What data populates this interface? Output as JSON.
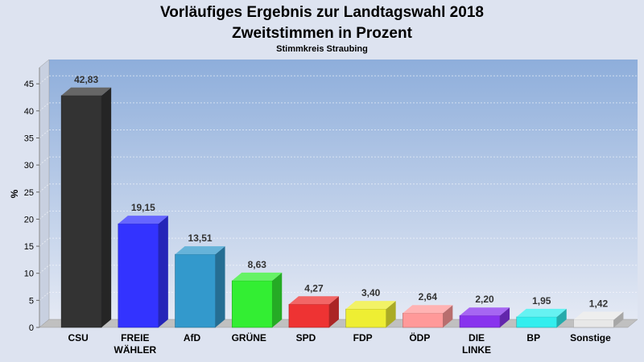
{
  "chart_data": {
    "type": "bar",
    "title": "Vorläufiges Ergebnis zur Landtagswahl 2018",
    "subtitle_line2": "Zweitstimmen in Prozent",
    "subtitle": "Stimmkreis Straubing",
    "ylabel": "%",
    "xlabel": "",
    "ylim": [
      0,
      48
    ],
    "yticks": [
      0,
      5,
      10,
      15,
      20,
      25,
      30,
      35,
      40,
      45
    ],
    "grid": true,
    "categories": [
      [
        "CSU"
      ],
      [
        "FREIE",
        "WÄHLER"
      ],
      [
        "AfD"
      ],
      [
        "GRÜNE"
      ],
      [
        "SPD"
      ],
      [
        "FDP"
      ],
      [
        "ÖDP"
      ],
      [
        "DIE",
        "LINKE"
      ],
      [
        "BP"
      ],
      [
        "Sonstige"
      ]
    ],
    "values": [
      42.83,
      19.15,
      13.51,
      8.63,
      4.27,
      3.4,
      2.64,
      2.2,
      1.95,
      1.42
    ],
    "value_labels": [
      "42,83",
      "19,15",
      "13,51",
      "8,63",
      "4,27",
      "3,40",
      "2,64",
      "2,20",
      "1,95",
      "1,42"
    ],
    "colors": [
      "#333333",
      "#3333ff",
      "#3399cc",
      "#33ee33",
      "#ee3333",
      "#eeee33",
      "#ff9999",
      "#8833ee",
      "#33eeee",
      "#e8e8e8"
    ]
  }
}
